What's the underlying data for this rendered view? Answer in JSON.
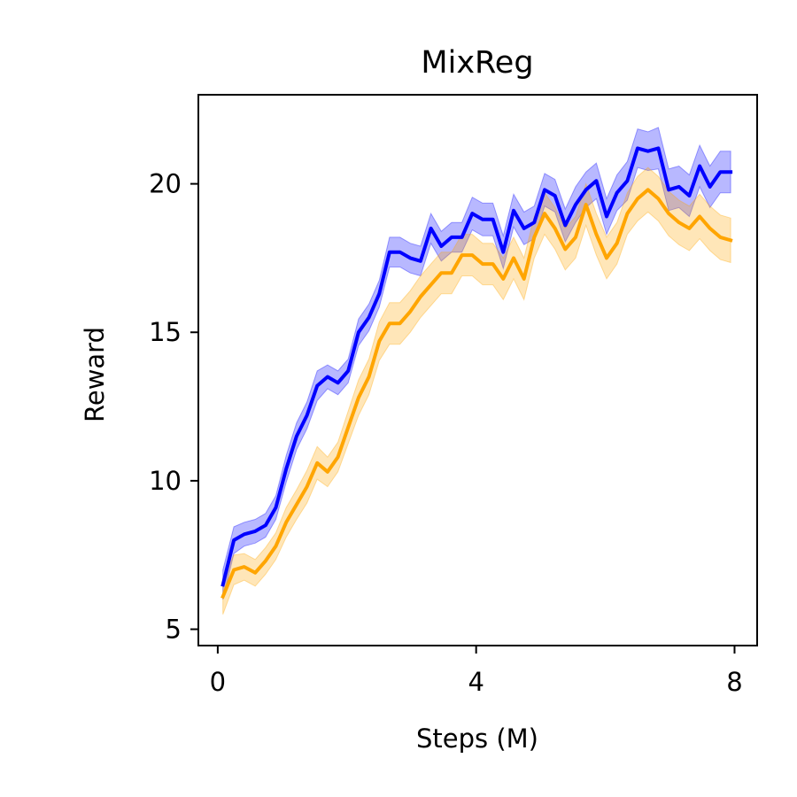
{
  "chart_data": {
    "type": "line",
    "title": "MixReg",
    "xlabel": "Steps (M)",
    "ylabel": "Reward",
    "xlim": [
      -0.3,
      8.35
    ],
    "ylim": [
      4.45,
      23.0
    ],
    "xticks": [
      0,
      4,
      8
    ],
    "yticks": [
      5,
      10,
      15,
      20
    ],
    "grid": false,
    "legend": "none",
    "series": [
      {
        "color": "#0000ff",
        "band_color": "#0000ff",
        "x": [
          0.08,
          0.25,
          0.41,
          0.58,
          0.74,
          0.9,
          1.06,
          1.22,
          1.38,
          1.54,
          1.7,
          1.86,
          2.02,
          2.18,
          2.34,
          2.5,
          2.66,
          2.82,
          2.98,
          3.14,
          3.3,
          3.46,
          3.62,
          3.78,
          3.94,
          4.1,
          4.26,
          4.42,
          4.58,
          4.74,
          4.9,
          5.06,
          5.22,
          5.38,
          5.54,
          5.7,
          5.86,
          6.02,
          6.18,
          6.34,
          6.5,
          6.66,
          6.82,
          6.98,
          7.14,
          7.3,
          7.46,
          7.62,
          7.78,
          7.94
        ],
        "y": [
          6.5,
          8.0,
          8.2,
          8.3,
          8.5,
          9.1,
          10.4,
          11.5,
          12.2,
          13.2,
          13.5,
          13.3,
          13.7,
          15.0,
          15.5,
          16.3,
          17.7,
          17.7,
          17.5,
          17.4,
          18.5,
          17.9,
          18.2,
          18.2,
          19.0,
          18.8,
          18.8,
          17.7,
          19.1,
          18.5,
          18.7,
          19.8,
          19.6,
          18.6,
          19.3,
          19.8,
          20.1,
          18.9,
          19.7,
          20.1,
          21.2,
          21.1,
          21.2,
          19.8,
          19.9,
          19.6,
          20.6,
          19.9,
          20.4,
          20.4
        ],
        "band": [
          0.5,
          0.45,
          0.4,
          0.4,
          0.4,
          0.4,
          0.45,
          0.45,
          0.45,
          0.5,
          0.4,
          0.4,
          0.4,
          0.45,
          0.45,
          0.45,
          0.5,
          0.5,
          0.5,
          0.5,
          0.5,
          0.5,
          0.5,
          0.5,
          0.55,
          0.55,
          0.55,
          0.55,
          0.55,
          0.55,
          0.55,
          0.55,
          0.55,
          0.55,
          0.6,
          0.6,
          0.6,
          0.6,
          0.6,
          0.65,
          0.65,
          0.65,
          0.7,
          0.7,
          0.7,
          0.7,
          0.7,
          0.7,
          0.7,
          0.7
        ]
      },
      {
        "color": "#ffa500",
        "band_color": "#ffa500",
        "x": [
          0.08,
          0.25,
          0.41,
          0.58,
          0.74,
          0.9,
          1.06,
          1.22,
          1.38,
          1.54,
          1.7,
          1.86,
          2.02,
          2.18,
          2.34,
          2.5,
          2.66,
          2.82,
          2.98,
          3.14,
          3.3,
          3.46,
          3.62,
          3.78,
          3.94,
          4.1,
          4.26,
          4.42,
          4.58,
          4.74,
          4.9,
          5.06,
          5.22,
          5.38,
          5.54,
          5.7,
          5.86,
          6.02,
          6.18,
          6.34,
          6.5,
          6.66,
          6.82,
          6.98,
          7.14,
          7.3,
          7.46,
          7.62,
          7.78,
          7.94
        ],
        "y": [
          6.1,
          7.0,
          7.1,
          6.9,
          7.3,
          7.8,
          8.6,
          9.2,
          9.8,
          10.6,
          10.3,
          10.8,
          11.8,
          12.8,
          13.5,
          14.7,
          15.3,
          15.3,
          15.7,
          16.2,
          16.6,
          17.0,
          17.0,
          17.6,
          17.6,
          17.3,
          17.3,
          16.8,
          17.5,
          16.8,
          18.2,
          19.0,
          18.5,
          17.8,
          18.2,
          19.3,
          18.3,
          17.5,
          18.0,
          19.0,
          19.5,
          19.8,
          19.5,
          19.0,
          18.7,
          18.5,
          18.9,
          18.5,
          18.2,
          18.1
        ],
        "band": [
          0.6,
          0.5,
          0.45,
          0.45,
          0.45,
          0.45,
          0.5,
          0.5,
          0.55,
          0.55,
          0.5,
          0.5,
          0.55,
          0.6,
          0.6,
          0.65,
          0.7,
          0.7,
          0.7,
          0.7,
          0.7,
          0.7,
          0.7,
          0.7,
          0.7,
          0.7,
          0.7,
          0.7,
          0.7,
          0.7,
          0.7,
          0.7,
          0.7,
          0.7,
          0.7,
          0.7,
          0.7,
          0.7,
          0.7,
          0.7,
          0.75,
          0.75,
          0.75,
          0.75,
          0.75,
          0.75,
          0.75,
          0.75,
          0.75,
          0.75
        ]
      }
    ]
  }
}
